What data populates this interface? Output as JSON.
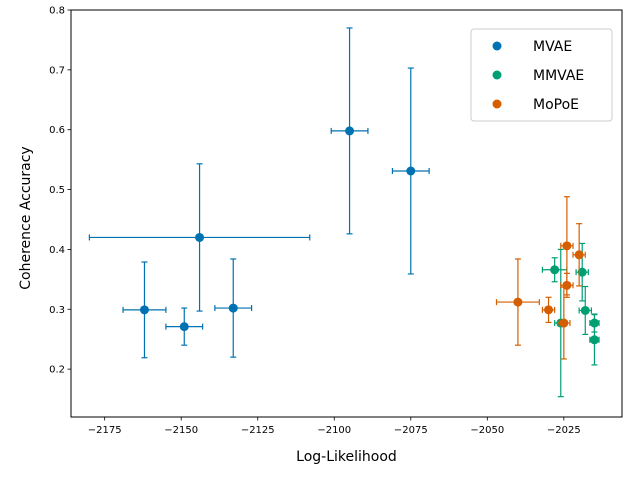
{
  "chart_data": {
    "type": "scatter",
    "title": "",
    "xlabel": "Log-Likelihood",
    "ylabel": "Coherence Accuracy",
    "xlim": [
      -2186,
      -2006
    ],
    "ylim": [
      0.12,
      0.8
    ],
    "xticks": [
      -2175,
      -2150,
      -2125,
      -2100,
      -2075,
      -2050,
      -2025
    ],
    "xtick_labels": [
      "−2175",
      "−2150",
      "−2125",
      "−2100",
      "−2075",
      "−2050",
      "−2025"
    ],
    "yticks": [
      0.2,
      0.3,
      0.4,
      0.5,
      0.6,
      0.7,
      0.8
    ],
    "ytick_labels": [
      "0.2",
      "0.3",
      "0.4",
      "0.5",
      "0.6",
      "0.7",
      "0.8"
    ],
    "legend_position": "top-right",
    "series": [
      {
        "name": "MVAE",
        "color": "#0072b2",
        "points": [
          {
            "x": -2162,
            "y": 0.299,
            "xerr": 7,
            "yerr": 0.08
          },
          {
            "x": -2149,
            "y": 0.271,
            "xerr": 6,
            "yerr": 0.031
          },
          {
            "x": -2144,
            "y": 0.42,
            "xerr": 36,
            "yerr": 0.123
          },
          {
            "x": -2133,
            "y": 0.302,
            "xerr": 6,
            "yerr": 0.082
          },
          {
            "x": -2095,
            "y": 0.598,
            "xerr": 6,
            "yerr": 0.172
          },
          {
            "x": -2075,
            "y": 0.531,
            "xerr": 6,
            "yerr": 0.172
          }
        ]
      },
      {
        "name": "MMVAE",
        "color": "#009e73",
        "points": [
          {
            "x": -2028,
            "y": 0.366,
            "xerr": 4,
            "yerr": 0.02
          },
          {
            "x": -2026,
            "y": 0.277,
            "xerr": 2,
            "yerr": 0.123
          },
          {
            "x": -2019,
            "y": 0.362,
            "xerr": 2,
            "yerr": 0.048
          },
          {
            "x": -2018,
            "y": 0.298,
            "xerr": 2,
            "yerr": 0.04
          },
          {
            "x": -2015,
            "y": 0.277,
            "xerr": 1.5,
            "yerr": 0.015
          },
          {
            "x": -2015,
            "y": 0.249,
            "xerr": 1.5,
            "yerr": 0.042
          }
        ]
      },
      {
        "name": "MoPoE",
        "color": "#d55e00",
        "points": [
          {
            "x": -2040,
            "y": 0.312,
            "xerr": 7,
            "yerr": 0.072
          },
          {
            "x": -2030,
            "y": 0.299,
            "xerr": 2,
            "yerr": 0.021
          },
          {
            "x": -2025,
            "y": 0.277,
            "xerr": 2,
            "yerr": 0.06
          },
          {
            "x": -2024,
            "y": 0.34,
            "xerr": 2,
            "yerr": 0.02
          },
          {
            "x": -2024,
            "y": 0.406,
            "xerr": 2,
            "yerr": 0.082
          },
          {
            "x": -2020,
            "y": 0.391,
            "xerr": 2,
            "yerr": 0.052
          }
        ]
      }
    ]
  }
}
